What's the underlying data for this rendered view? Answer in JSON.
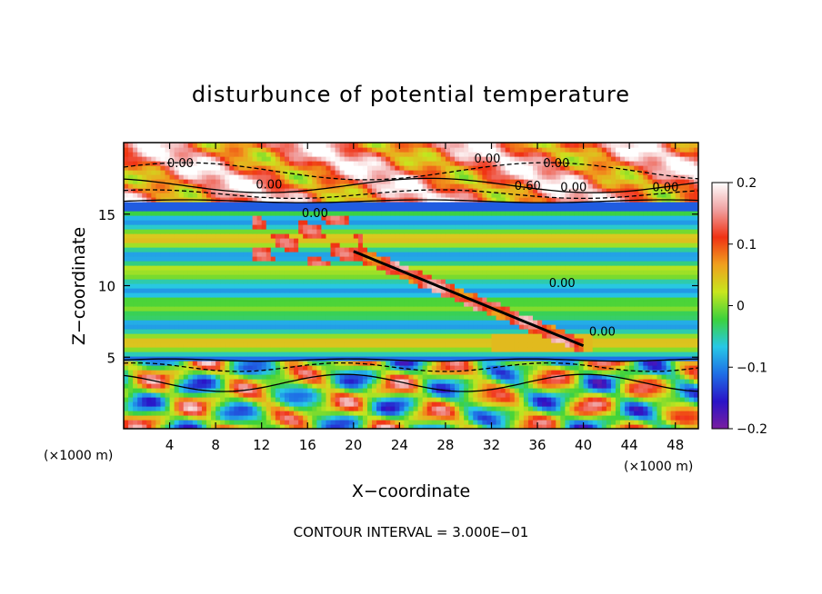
{
  "chart_data": {
    "type": "heatmap",
    "title": "disturbunce of potential temperature",
    "xlabel": "X−coordinate",
    "ylabel": "Z−coordinate",
    "x_unit_label": "(×1000 m)",
    "y_unit_label": "(×1000 m)",
    "xlim": [
      0,
      50
    ],
    "ylim": [
      0,
      20
    ],
    "x_ticks": [
      4,
      8,
      12,
      16,
      20,
      24,
      28,
      32,
      36,
      40,
      44,
      48
    ],
    "y_ticks": [
      5,
      10,
      15
    ],
    "colorbar": {
      "range": [
        -0.2,
        0.2
      ],
      "tick_values": [
        0.2,
        0.1,
        0,
        -0.1,
        -0.2
      ],
      "tick_labels": [
        "0.2",
        "0.1",
        "0",
        "−0.1",
        "−0.2"
      ],
      "colors": [
        "#7a1fa0",
        "#2a14c8",
        "#1e6ee6",
        "#27c8e6",
        "#3cd23c",
        "#c8e61e",
        "#f0a01e",
        "#f03214",
        "#f0a0a0",
        "#ffffff"
      ]
    },
    "footnote": "CONTOUR INTERVAL = 3.000E−01",
    "contour_labels": [
      "0.00",
      "0.00",
      "0.00",
      "0.00",
      "0.60",
      "0.00",
      "0.00",
      "0.00",
      "0.00",
      "0.00"
    ],
    "contour_interval": 0.3
  }
}
